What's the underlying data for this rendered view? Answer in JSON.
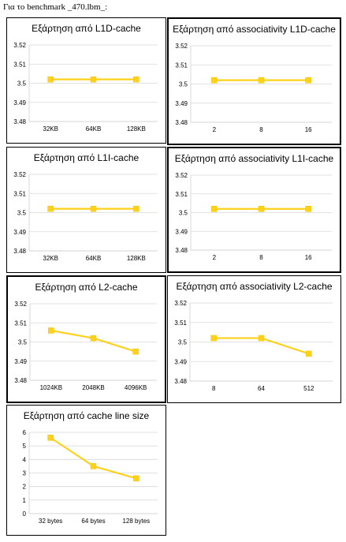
{
  "page": {
    "heading": "Για το benchmark _470.lbm_:"
  },
  "chart_data": [
    {
      "id": "l1d-size",
      "type": "line",
      "title": "Εξάρτηση από L1D-cache",
      "categories": [
        "32KB",
        "64KB",
        "128KB"
      ],
      "series": [
        {
          "values": [
            3.502,
            3.502,
            3.502
          ]
        }
      ],
      "ylim": [
        3.48,
        3.52
      ],
      "yticks": [
        "3.48",
        "3.49",
        "3.5",
        "3.51",
        "3.52"
      ],
      "ytick_values": [
        3.48,
        3.49,
        3.5,
        3.51,
        3.52
      ],
      "grid": true,
      "legend": "none",
      "color": "#ffd11a"
    },
    {
      "id": "l1d-assoc",
      "type": "line",
      "title": "Εξάρτηση από associativity L1D-cache",
      "categories": [
        "2",
        "8",
        "16"
      ],
      "series": [
        {
          "values": [
            3.502,
            3.502,
            3.502
          ]
        }
      ],
      "ylim": [
        3.48,
        3.52
      ],
      "yticks": [
        "3.48",
        "3.49",
        "3.5",
        "3.51",
        "3.52"
      ],
      "ytick_values": [
        3.48,
        3.49,
        3.5,
        3.51,
        3.52
      ],
      "grid": true,
      "legend": "none",
      "color": "#ffd11a"
    },
    {
      "id": "l1i-size",
      "type": "line",
      "title": "Εξάρτηση από L1I-cache",
      "categories": [
        "32KB",
        "64KB",
        "128KB"
      ],
      "series": [
        {
          "values": [
            3.502,
            3.502,
            3.502
          ]
        }
      ],
      "ylim": [
        3.48,
        3.52
      ],
      "yticks": [
        "3.48",
        "3.49",
        "3.5",
        "3.51",
        "3.52"
      ],
      "ytick_values": [
        3.48,
        3.49,
        3.5,
        3.51,
        3.52
      ],
      "grid": true,
      "legend": "none",
      "color": "#ffd11a"
    },
    {
      "id": "l1i-assoc",
      "type": "line",
      "title": "Εξάρτηση από associativity L1I-cache",
      "categories": [
        "2",
        "8",
        "16"
      ],
      "series": [
        {
          "values": [
            3.502,
            3.502,
            3.502
          ]
        }
      ],
      "ylim": [
        3.48,
        3.52
      ],
      "yticks": [
        "3.48",
        "3.49",
        "3.5",
        "3.51",
        "3.52"
      ],
      "ytick_values": [
        3.48,
        3.49,
        3.5,
        3.51,
        3.52
      ],
      "grid": true,
      "legend": "none",
      "color": "#ffd11a"
    },
    {
      "id": "l2-size",
      "type": "line",
      "title": "Εξάρτηση από L2-cache",
      "categories": [
        "1024KB",
        "2048KB",
        "4096KB"
      ],
      "series": [
        {
          "values": [
            3.506,
            3.502,
            3.495
          ]
        }
      ],
      "ylim": [
        3.48,
        3.52
      ],
      "yticks": [
        "3.48",
        "3.49",
        "3.5",
        "3.51",
        "3.52"
      ],
      "ytick_values": [
        3.48,
        3.49,
        3.5,
        3.51,
        3.52
      ],
      "grid": true,
      "legend": "none",
      "color": "#ffd11a"
    },
    {
      "id": "l2-assoc",
      "type": "line",
      "title": "Εξάρτηση από associativity L2-cache",
      "categories": [
        "8",
        "64",
        "512"
      ],
      "series": [
        {
          "values": [
            3.502,
            3.502,
            3.494
          ]
        }
      ],
      "ylim": [
        3.48,
        3.52
      ],
      "yticks": [
        "3.48",
        "3.49",
        "3.5",
        "3.51",
        "3.52"
      ],
      "ytick_values": [
        3.48,
        3.49,
        3.5,
        3.51,
        3.52
      ],
      "grid": true,
      "legend": "none",
      "color": "#ffd11a"
    },
    {
      "id": "line-size",
      "type": "line",
      "title": "Εξάρτηση από cache line size",
      "categories": [
        "32 bytes",
        "64 bytes",
        "128 bytes"
      ],
      "series": [
        {
          "values": [
            5.6,
            3.5,
            2.6
          ]
        }
      ],
      "ylim": [
        0,
        6
      ],
      "yticks": [
        "0",
        "1",
        "2",
        "3",
        "4",
        "5",
        "6"
      ],
      "ytick_values": [
        0,
        1,
        2,
        3,
        4,
        5,
        6
      ],
      "grid": true,
      "legend": "none",
      "color": "#ffd11a"
    }
  ]
}
